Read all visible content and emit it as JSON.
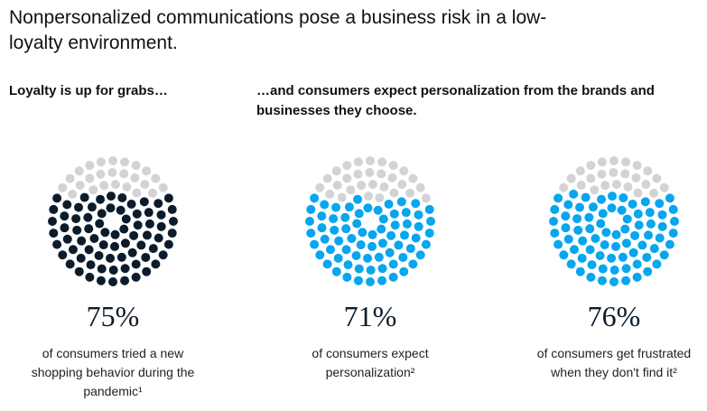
{
  "title": "Nonpersonalized communications pose a business risk in a low-loyalty environment.",
  "chart_data": [
    {
      "type": "dot",
      "subtitle": "Loyalty is up for grabs…",
      "values": [
        75
      ],
      "value_labels": [
        "75%"
      ],
      "caption": "of consumers tried a new shopping behavior during the pandemic¹",
      "color": "#0c1c2c",
      "empty_color": "#d3d3d3"
    },
    {
      "type": "dot",
      "subtitle": "…and consumers expect personalization from the brands and businesses they choose.",
      "values": [
        71
      ],
      "value_labels": [
        "71%"
      ],
      "caption": "of consumers expect personalization²",
      "color": "#07a6ee",
      "empty_color": "#d3d3d3"
    },
    {
      "type": "dot",
      "values": [
        76
      ],
      "value_labels": [
        "76%"
      ],
      "caption": "of consumers get frustrated when they don't find it²",
      "color": "#07a6ee",
      "empty_color": "#d3d3d3"
    }
  ]
}
